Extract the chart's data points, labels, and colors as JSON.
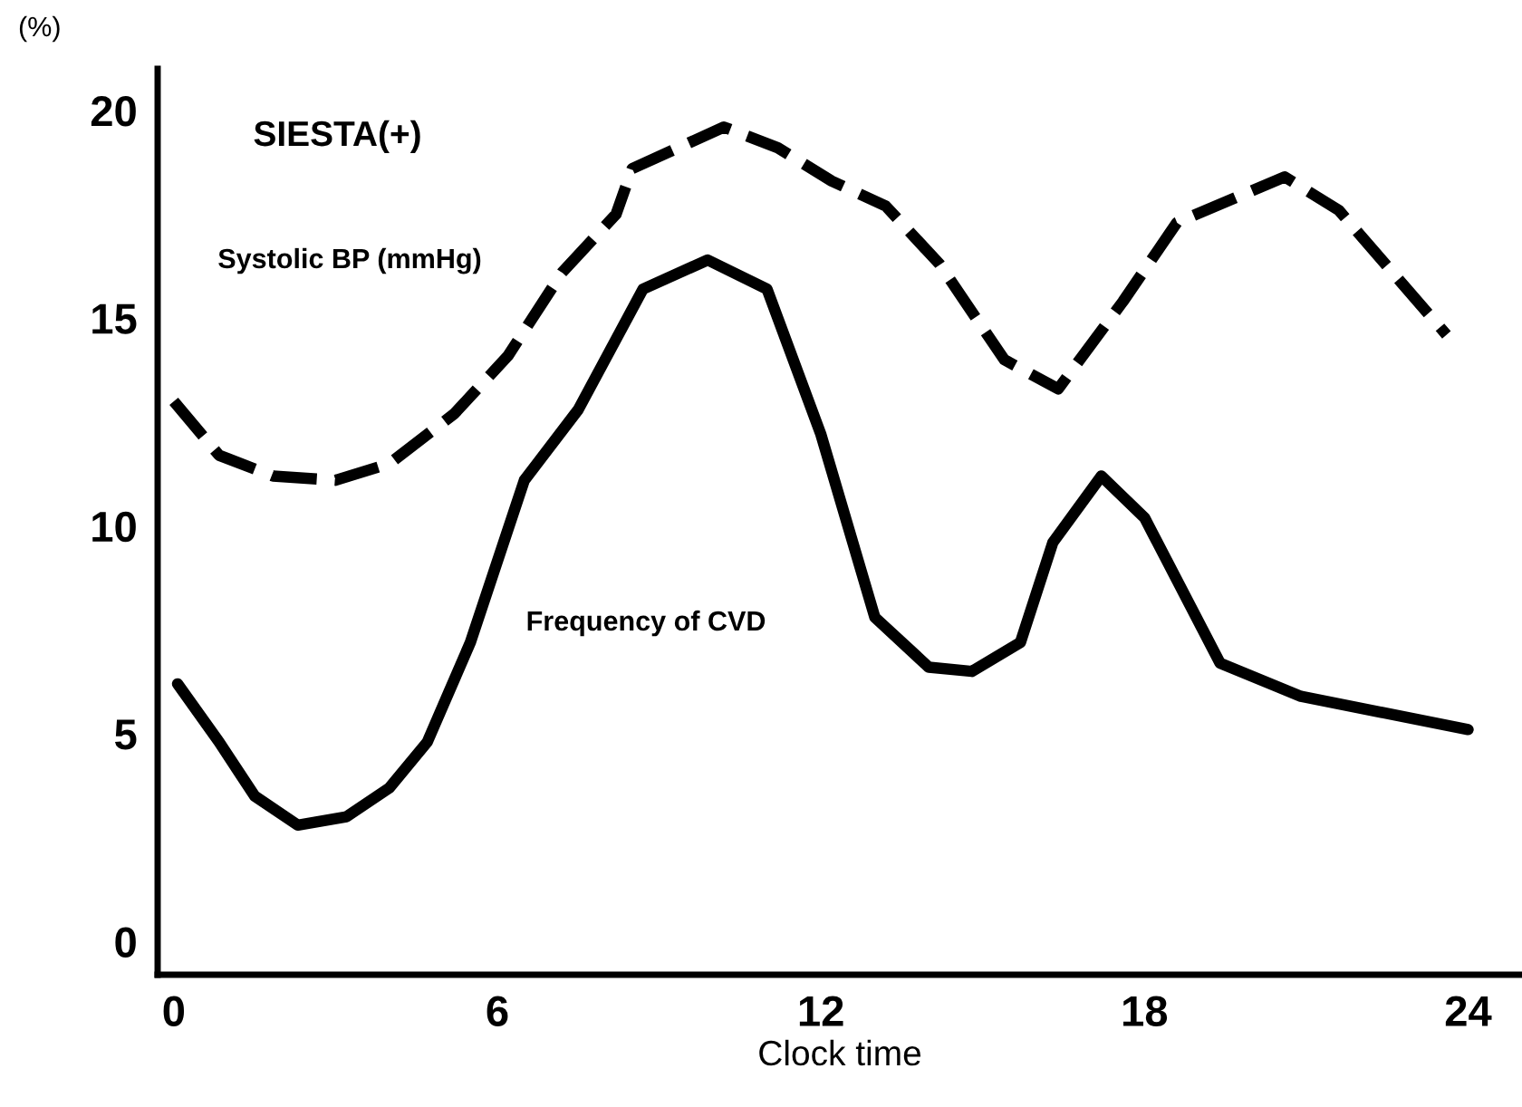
{
  "chart_data": {
    "type": "line",
    "ylabel": "(%)",
    "xlabel": "Clock time",
    "annotations": [
      "SIESTA(+)"
    ],
    "xlim": [
      -0.3,
      25
    ],
    "xticks": [
      0,
      6,
      12,
      18,
      24
    ],
    "ylim": [
      -0.8,
      21
    ],
    "yticks": [
      0,
      5,
      10,
      15,
      20
    ],
    "grid": false,
    "legend": false,
    "marker": "none",
    "series": [
      {
        "name": "Systolic BP (mmHg)",
        "color": "#000000",
        "line_style": "dashed",
        "x": [
          0,
          0.84,
          1.84,
          3.0,
          4.0,
          5.2,
          6.2,
          7.2,
          8.2,
          8.5,
          10.2,
          11.2,
          12.2,
          13.2,
          14.2,
          15.4,
          16.4,
          17.6,
          18.6,
          20.6,
          21.6,
          23.6
        ],
        "values": [
          13.0,
          11.7,
          11.2,
          11.1,
          11.5,
          12.7,
          14.1,
          16.1,
          17.5,
          18.6,
          19.6,
          19.1,
          18.3,
          17.7,
          16.3,
          14.0,
          13.3,
          15.4,
          17.3,
          18.4,
          17.6,
          14.6
        ]
      },
      {
        "name": "Frequency of CVD",
        "color": "#000000",
        "line_style": "solid",
        "x": [
          0.07,
          0.84,
          1.5,
          2.3,
          3.2,
          4.0,
          4.7,
          5.5,
          6.5,
          7.5,
          8.7,
          9.9,
          11.0,
          12.0,
          13.0,
          14.0,
          14.8,
          15.7,
          16.3,
          17.2,
          18.0,
          19.4,
          20.9,
          24.0
        ],
        "values": [
          6.2,
          4.8,
          3.5,
          2.8,
          3.0,
          3.7,
          4.8,
          7.2,
          11.1,
          12.8,
          15.7,
          16.4,
          15.7,
          12.2,
          7.8,
          6.6,
          6.5,
          7.2,
          9.6,
          11.2,
          10.2,
          6.7,
          5.9,
          5.1
        ]
      }
    ]
  }
}
